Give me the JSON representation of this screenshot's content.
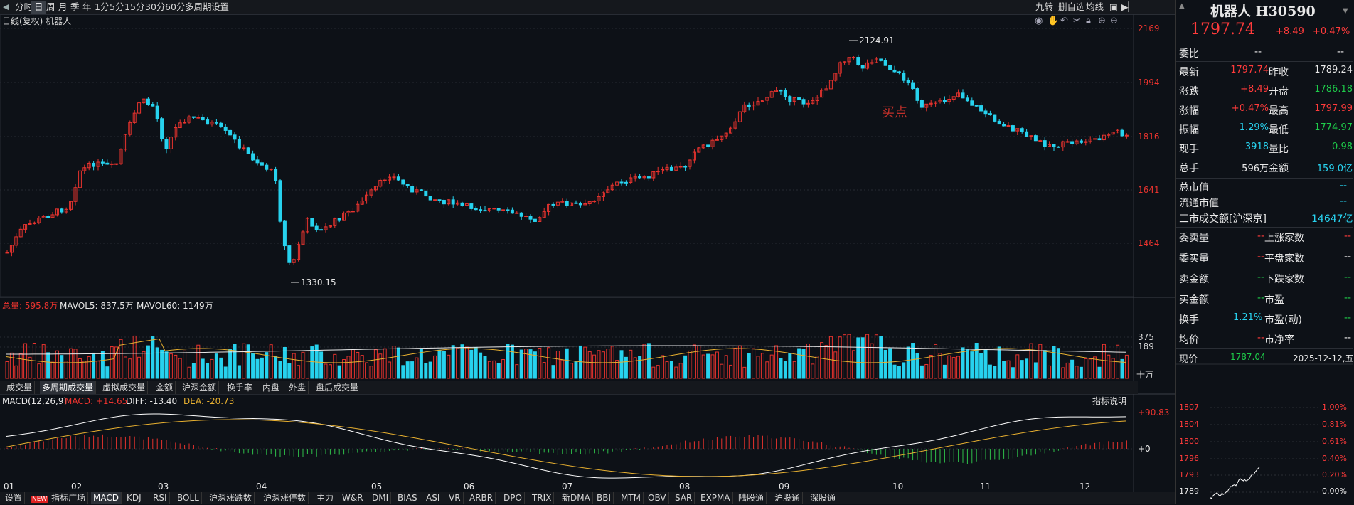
{
  "toolbar": {
    "items": [
      "分时",
      "日",
      "周",
      "月",
      "季",
      "年",
      "1分",
      "5分",
      "15分",
      "30分",
      "60分",
      "多周期",
      "设置"
    ],
    "active": "日",
    "right_items": [
      "九转",
      "删自选",
      "均线"
    ]
  },
  "chart": {
    "subtitle": "日线(复权) 机器人",
    "price_axis": [
      "2169",
      "1994",
      "1816",
      "1641",
      "1464"
    ],
    "high_label": "2124.91",
    "low_label": "1330.15",
    "annotation": "买点",
    "month_labels": [
      "01",
      "02",
      "03",
      "04",
      "05",
      "06",
      "07",
      "08",
      "09",
      "10",
      "11",
      "12"
    ]
  },
  "volume": {
    "legend_total": "总量: 595.8万",
    "legend_mavol5": "MAVOL5: 837.5万",
    "legend_mavol60": "MAVOL60: 1149万",
    "axis": [
      "375",
      "189"
    ],
    "unit": "十万",
    "tabs": [
      "成交量",
      "多周期成交量",
      "虚拟成交量",
      "金额",
      "沪深金额",
      "换手率",
      "内盘",
      "外盘",
      "盘后成交量"
    ],
    "active_tab": "多周期成交量"
  },
  "macd": {
    "legend_name": "MACD(12,26,9)",
    "legend_macd": "MACD: +14.65",
    "legend_diff": "DIFF: -13.40",
    "legend_dea": "DEA: -20.73",
    "axis_top": "+90.83",
    "axis_zero": "+0",
    "explain": "指标说明"
  },
  "bottom_tabs": [
    "设置",
    "指标广场",
    "MACD",
    "KDJ",
    "RSI",
    "BOLL",
    "沪深涨跌数",
    "沪深涨停数",
    "主力",
    "W&R",
    "DMI",
    "BIAS",
    "ASI",
    "VR",
    "ARBR",
    "DPO",
    "TRIX",
    "新DMA",
    "BBI",
    "MTM",
    "OBV",
    "SAR",
    "EXPMA",
    "陆股通",
    "沪股通",
    "深股通"
  ],
  "bottom_new_badge": "NEW",
  "bottom_active": "MACD",
  "panel": {
    "title": "机器人 H30590",
    "price": "1797.74",
    "change": "+8.49",
    "change_pct": "+0.47%",
    "weibi_label": "委比",
    "weibi_value": "--",
    "weibi_value2": "--",
    "rows": [
      {
        "l1": "最新",
        "v1": "1797.74",
        "l2": "昨收",
        "v2": "1789.24"
      },
      {
        "l1": "涨跌",
        "v1": "+8.49",
        "l2": "开盘",
        "v2": "1786.18"
      },
      {
        "l1": "涨幅",
        "v1": "+0.47%",
        "l2": "最高",
        "v2": "1797.99"
      },
      {
        "l1": "振幅",
        "v1": "1.29%",
        "l2": "最低",
        "v2": "1774.97"
      },
      {
        "l1": "现手",
        "v1": "3918",
        "l2": "量比",
        "v2": "0.98"
      },
      {
        "l1": "总手",
        "v1": "596万",
        "l2": "金额",
        "v2": "159.0亿"
      }
    ],
    "cap_rows": [
      {
        "label": "总市值",
        "value": "--"
      },
      {
        "label": "流通市值",
        "value": "--"
      },
      {
        "label": "三市成交额[沪深京]",
        "value": "14647亿"
      }
    ],
    "stat_rows": [
      {
        "l1": "委卖量",
        "v1": "--",
        "l2": "上涨家数",
        "v2": "--"
      },
      {
        "l1": "委买量",
        "v1": "--",
        "l2": "平盘家数",
        "v2": "--"
      },
      {
        "l1": "卖金额",
        "v1": "--",
        "l2": "下跌家数",
        "v2": "--"
      },
      {
        "l1": "买金额",
        "v1": "--",
        "l2": "市盈",
        "v2": "--"
      },
      {
        "l1": "换手",
        "v1": "1.21%",
        "l2": "市盈(动)",
        "v2": "--"
      },
      {
        "l1": "均价",
        "v1": "--",
        "l2": "市净率",
        "v2": "--"
      }
    ],
    "mini": {
      "now_label": "现价",
      "now_value": "1787.04",
      "date": "2025-12-12,五",
      "prices": [
        "1807",
        "1804",
        "1800",
        "1796",
        "1793",
        "1789"
      ],
      "pcts": [
        "1.00%",
        "0.81%",
        "0.61%",
        "0.40%",
        "0.20%",
        "0.00%"
      ]
    }
  },
  "colors": {
    "up": "#e8332e",
    "down": "#27d2ee",
    "bg": "#0d1117"
  }
}
